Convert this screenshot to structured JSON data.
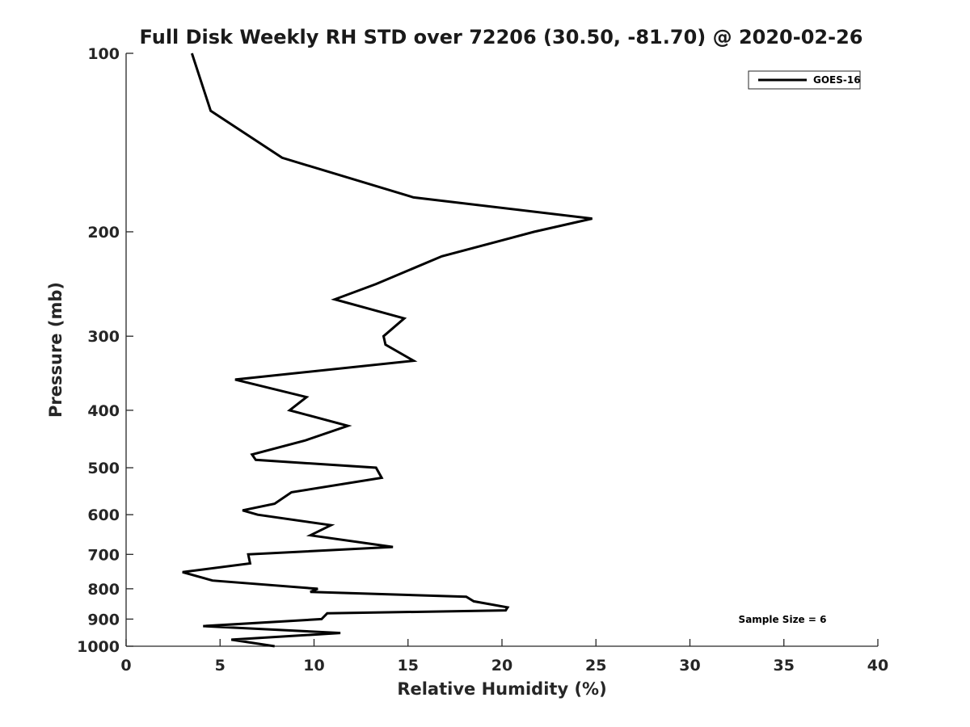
{
  "chart_data": {
    "type": "line",
    "title": "Full Disk Weekly RH STD over 72206 (30.50, -81.70) @ 2020-02-26",
    "xlabel": "Relative Humidity (%)",
    "ylabel": "Pressure (mb)",
    "xlim": [
      0,
      40
    ],
    "ylim": [
      1000,
      100
    ],
    "y_scale": "log",
    "y_reversed": true,
    "grid": false,
    "legend_placement": "top-right",
    "x_ticks": [
      "0",
      "5",
      "10",
      "15",
      "20",
      "25",
      "30",
      "35",
      "40"
    ],
    "x_tick_values": [
      0,
      5,
      10,
      15,
      20,
      25,
      30,
      35,
      40
    ],
    "y_ticks": [
      "100",
      "200",
      "300",
      "400",
      "500",
      "600",
      "700",
      "800",
      "900",
      "1000"
    ],
    "y_tick_values": [
      100,
      200,
      300,
      400,
      500,
      600,
      700,
      800,
      900,
      1000
    ],
    "annotation": "Sample Size = 6",
    "series": [
      {
        "name": "GOES-16",
        "color": "#000000",
        "points": [
          [
            3.5,
            100
          ],
          [
            4.5,
            125
          ],
          [
            8.3,
            150
          ],
          [
            15.3,
            175
          ],
          [
            24.8,
            190
          ],
          [
            21.7,
            200
          ],
          [
            16.8,
            220
          ],
          [
            13.3,
            245
          ],
          [
            11.1,
            260
          ],
          [
            14.8,
            280
          ],
          [
            13.7,
            300
          ],
          [
            13.8,
            310
          ],
          [
            15.3,
            330
          ],
          [
            5.8,
            355
          ],
          [
            9.6,
            380
          ],
          [
            8.7,
            400
          ],
          [
            11.8,
            425
          ],
          [
            9.5,
            450
          ],
          [
            6.7,
            475
          ],
          [
            6.9,
            485
          ],
          [
            13.3,
            500
          ],
          [
            13.6,
            520
          ],
          [
            8.8,
            550
          ],
          [
            7.9,
            575
          ],
          [
            6.2,
            590
          ],
          [
            7.0,
            600
          ],
          [
            10.9,
            625
          ],
          [
            9.8,
            650
          ],
          [
            14.2,
            680
          ],
          [
            6.5,
            700
          ],
          [
            6.6,
            725
          ],
          [
            3.0,
            750
          ],
          [
            4.6,
            775
          ],
          [
            10.2,
            800
          ],
          [
            9.8,
            810
          ],
          [
            18.1,
            825
          ],
          [
            18.5,
            840
          ],
          [
            20.3,
            860
          ],
          [
            20.2,
            870
          ],
          [
            10.7,
            880
          ],
          [
            10.4,
            900
          ],
          [
            4.1,
            925
          ],
          [
            11.4,
            950
          ],
          [
            5.6,
            975
          ],
          [
            7.9,
            1000
          ]
        ]
      }
    ]
  }
}
